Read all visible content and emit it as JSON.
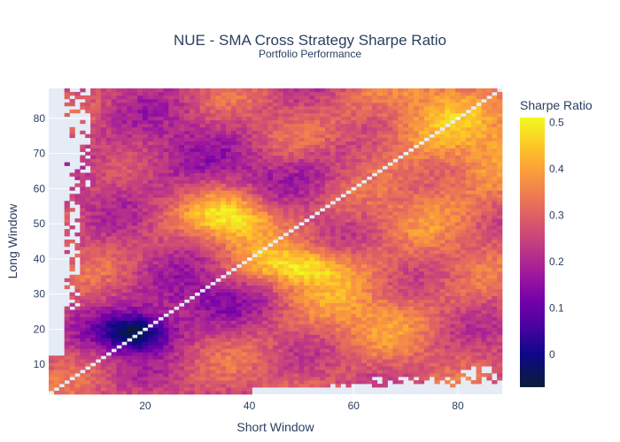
{
  "chart_data": {
    "type": "heatmap",
    "title": "NUE - SMA Cross Strategy Sharpe Ratio",
    "subtitle": "Portfolio Performance",
    "xlabel": "Short Window",
    "ylabel": "Long Window",
    "xlim": [
      2,
      88
    ],
    "ylim": [
      2,
      88
    ],
    "x_ticks": [
      20,
      40,
      60,
      80
    ],
    "y_ticks": [
      10,
      20,
      30,
      40,
      50,
      60,
      70,
      80
    ],
    "grid": true,
    "colorbar": {
      "title": "Sharpe Ratio",
      "range": [
        -0.07,
        0.51
      ],
      "ticks": [
        0,
        0.1,
        0.2,
        0.3,
        0.4,
        0.5
      ],
      "colorscale": [
        "#0d0887",
        "#46039f",
        "#7201a8",
        "#9c179e",
        "#bd3786",
        "#d8576b",
        "#ed7953",
        "#fb9f3a",
        "#fdca26",
        "#f0f921"
      ],
      "low_color": "#0b1d3a"
    },
    "grid_spec": "x and y from 2 to 88 step 1; values estimated from color",
    "regions": [
      {
        "label": "diagonal x=y",
        "value": null
      },
      {
        "label": "cluster around short 15-22, long 15-22",
        "value": -0.05
      },
      {
        "label": "peak around short 35-40, long 50-55",
        "value": 0.5
      },
      {
        "label": "peak around short 45-55, long 35-42",
        "value": 0.48
      },
      {
        "label": "upper-right band short 65-88, long 60-88",
        "value": 0.42
      },
      {
        "label": "mid-right band short 55-75, long 18-35",
        "value": 0.35
      }
    ]
  }
}
